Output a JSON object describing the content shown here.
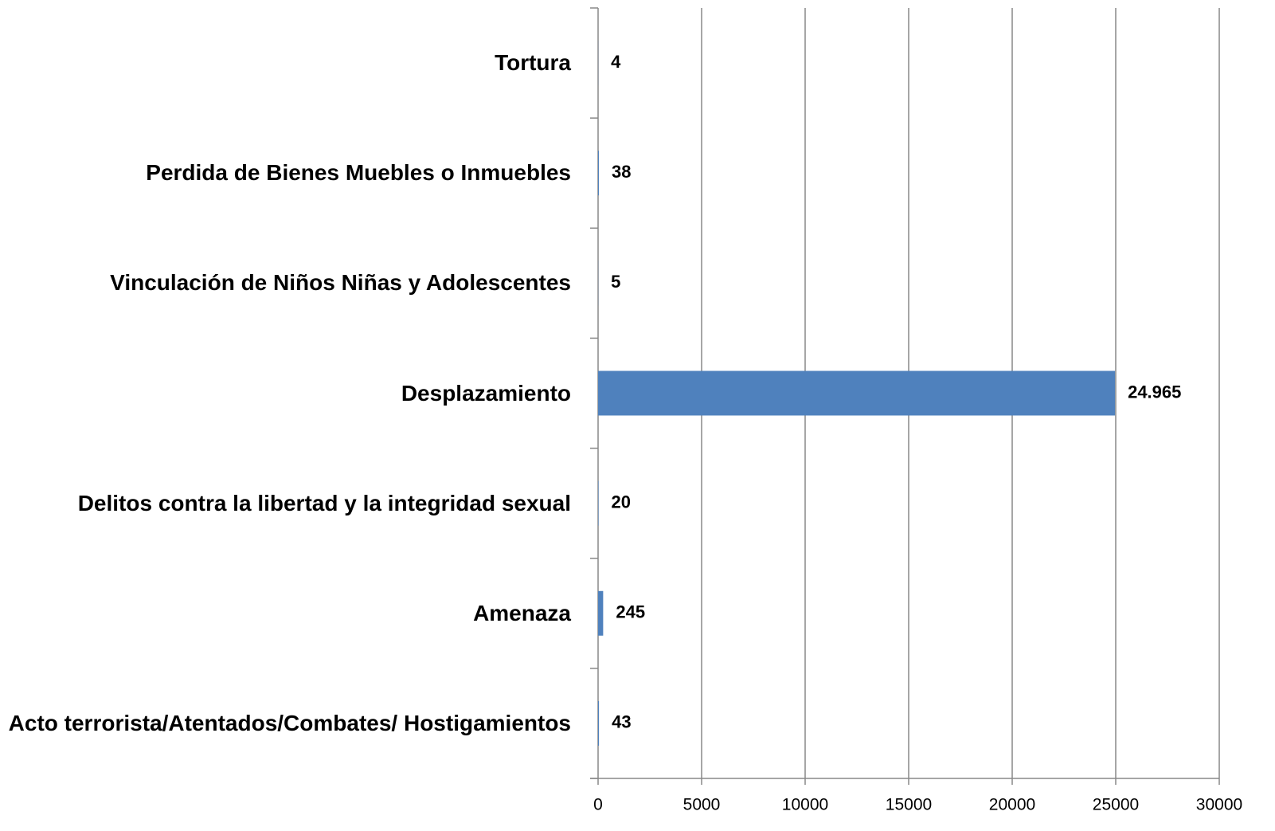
{
  "chart_data": {
    "type": "barh",
    "categories": [
      "Tortura",
      "Perdida de Bienes Muebles o Inmuebles",
      "Vinculación de Niños Niñas y Adolescentes",
      "Desplazamiento",
      "Delitos contra la libertad y la integridad sexual",
      "Amenaza",
      "Acto terrorista/Atentados/Combates/ Hostigamientos"
    ],
    "values": [
      4,
      38,
      5,
      24965,
      20,
      245,
      43
    ],
    "value_labels": [
      "4",
      "38",
      "5",
      "24.965",
      "20",
      "245",
      "43"
    ],
    "color": "#4f81bd",
    "xlim": [
      0,
      30000
    ],
    "xticks": [
      0,
      5000,
      10000,
      15000,
      20000,
      25000,
      30000
    ],
    "grid": true
  }
}
